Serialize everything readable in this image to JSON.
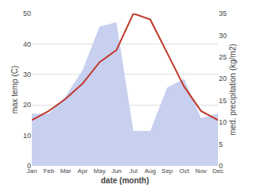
{
  "chart_data": {
    "type": "line",
    "xlabel": "date (month)",
    "ylabel": "max temp (C)",
    "y2label": "med. precipitation (kg/m2)",
    "categories": [
      "Jan",
      "Feb",
      "Mar",
      "Apr",
      "May",
      "Jun",
      "Jul",
      "Aug",
      "Sep",
      "Oct",
      "Nov",
      "Dec"
    ],
    "series": [
      {
        "type": "area",
        "axis": "y2",
        "color": "#c8d0f0",
        "values": [
          12,
          12,
          16,
          22,
          32,
          33,
          8,
          8,
          18,
          20,
          11,
          12
        ]
      },
      {
        "type": "line",
        "color": "#c0392b",
        "values": [
          15,
          18,
          22,
          27,
          34,
          38,
          50,
          48,
          37,
          26,
          18,
          15
        ]
      }
    ],
    "ylim": [
      0,
      50
    ],
    "yticks": [
      0,
      10,
      20,
      30,
      40,
      50
    ],
    "y2lim": [
      0,
      35
    ],
    "y2ticks": [
      0,
      5,
      10,
      15,
      20,
      25,
      30,
      35
    ],
    "grid": true
  }
}
